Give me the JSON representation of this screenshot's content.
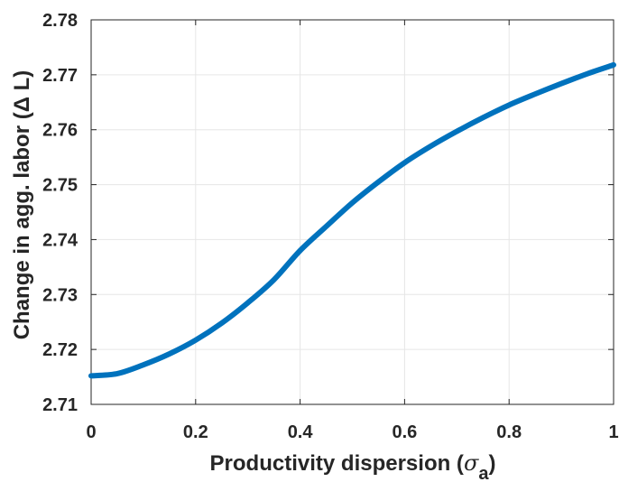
{
  "chart_data": {
    "type": "line",
    "title": "",
    "xlabel": "Productivity dispersion (σ_a)",
    "xlabel_parts": {
      "text": "Productivity dispersion (",
      "symbol": "σ",
      "subscript": "a",
      "close": ")"
    },
    "ylabel": "Change in agg. labor (Δ L)",
    "xlim": [
      0,
      1
    ],
    "ylim": [
      2.71,
      2.78
    ],
    "xticks": [
      "0",
      "0.2",
      "0.4",
      "0.6",
      "0.8",
      "1"
    ],
    "yticks": [
      "2.71",
      "2.72",
      "2.73",
      "2.74",
      "2.75",
      "2.76",
      "2.77",
      "2.78"
    ],
    "grid": true,
    "line_color": "#0072BD",
    "series": [
      {
        "x": [
          0,
          0.05,
          0.1,
          0.15,
          0.2,
          0.25,
          0.3,
          0.35,
          0.4,
          0.45,
          0.5,
          0.55,
          0.6,
          0.65,
          0.7,
          0.75,
          0.8,
          0.85,
          0.9,
          0.95,
          1.0
        ],
        "values": [
          2.7152,
          2.7156,
          2.7172,
          2.7192,
          2.7217,
          2.7248,
          2.7285,
          2.7327,
          2.738,
          2.7424,
          2.7467,
          2.7505,
          2.754,
          2.757,
          2.7597,
          2.7622,
          2.7645,
          2.7665,
          2.7684,
          2.7702,
          2.7718
        ]
      }
    ]
  }
}
